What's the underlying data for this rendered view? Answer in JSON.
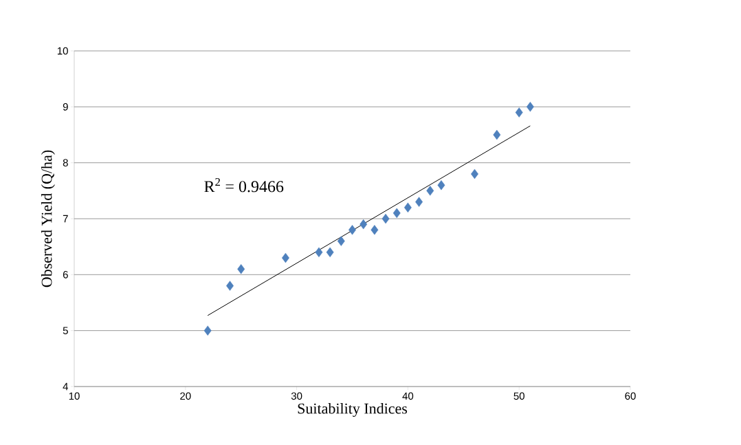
{
  "chart_data": {
    "type": "scatter",
    "xlabel": "Suitability Indices",
    "ylabel": "Observed Yield (Q/ha)",
    "xlim": [
      10,
      60
    ],
    "xticks": [
      10,
      20,
      30,
      40,
      50,
      60
    ],
    "ylim": [
      4,
      10
    ],
    "yticks": [
      4,
      5,
      6,
      7,
      8,
      9,
      10
    ],
    "grid": "y",
    "marker": "diamond",
    "annotations": [
      "R$^{2}$ = 0.9466"
    ],
    "series": [
      {
        "color": "#4f81bd",
        "x": [
          22,
          24,
          25,
          29,
          32,
          33,
          34,
          35,
          36,
          37,
          38,
          39,
          40,
          41,
          42,
          43,
          46,
          48,
          50,
          51
        ],
        "values": [
          5.0,
          5.8,
          6.1,
          6.3,
          6.4,
          6.4,
          6.6,
          6.8,
          6.9,
          6.8,
          7.0,
          7.1,
          7.2,
          7.3,
          7.5,
          7.6,
          7.8,
          8.5,
          8.9,
          9.0
        ]
      },
      {
        "type": "line",
        "marker": "none",
        "color": "#000000",
        "x": [
          22,
          51
        ],
        "values": [
          5.27,
          8.66
        ]
      }
    ]
  }
}
